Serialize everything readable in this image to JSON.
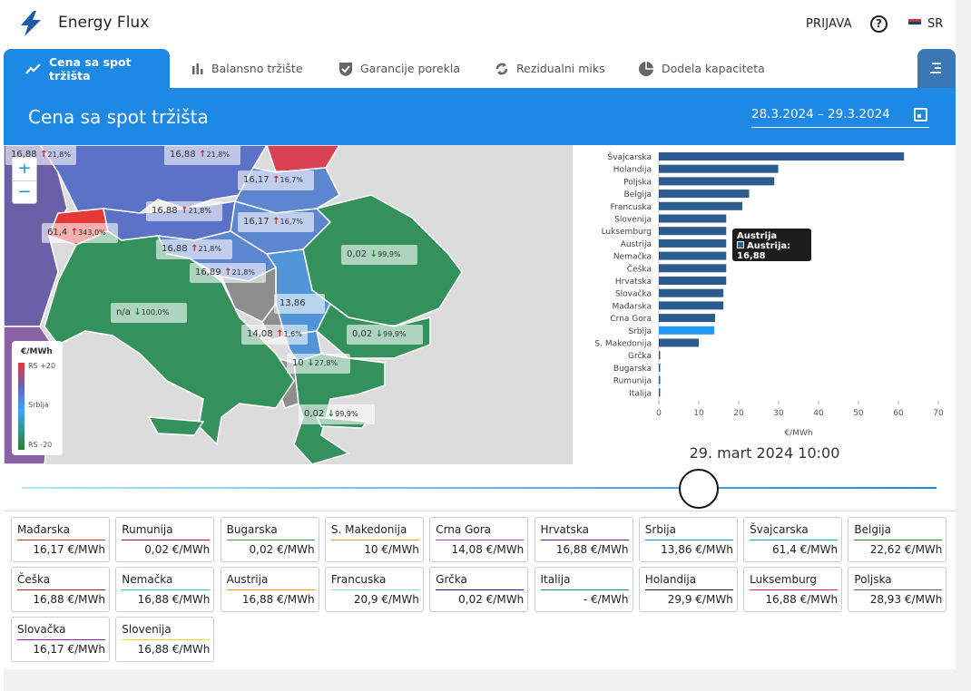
{
  "app": {
    "title": "Energy Flux",
    "login": "PRIJAVA",
    "help": "?",
    "lang": "SR"
  },
  "tabs": [
    {
      "label": "Cena sa spot tržišta",
      "icon": "trend-icon"
    },
    {
      "label": "Balansno tržište",
      "icon": "bar-icon"
    },
    {
      "label": "Garancije porekla",
      "icon": "shield-check-icon"
    },
    {
      "label": "Rezidualni miks",
      "icon": "cycle-icon"
    },
    {
      "label": "Dodela kapaciteta",
      "icon": "pie-icon"
    }
  ],
  "header": {
    "title": "Cena sa spot tržišta",
    "date_range": "28.3.2024 – 29.3.2024"
  },
  "map": {
    "zoom_in": "+",
    "zoom_out": "−",
    "legend_title": "€/MWh",
    "legend_top": "RS +20",
    "legend_mid": "Srbija",
    "legend_bottom": "RS -20",
    "labels": [
      {
        "value": "16,88",
        "dir": "up",
        "pct": "21,8%"
      },
      {
        "value": "16,88",
        "dir": "up",
        "pct": "21,8%"
      },
      {
        "value": "16,17",
        "dir": "up",
        "pct": "16,7%"
      },
      {
        "value": "16,88",
        "dir": "up",
        "pct": "21,8%"
      },
      {
        "value": "16,17",
        "dir": "up",
        "pct": "16,7%"
      },
      {
        "value": "61,4",
        "dir": "up",
        "pct": "343,0%"
      },
      {
        "value": "0,02",
        "dir": "dn",
        "pct": "99,9%"
      },
      {
        "value": "16,88",
        "dir": "up",
        "pct": "21,8%"
      },
      {
        "value": "16,89",
        "dir": "up",
        "pct": "21,8%"
      },
      {
        "value": "n/a",
        "dir": "dn",
        "pct": "100,0%"
      },
      {
        "value": "13,86",
        "dir": "",
        "pct": ""
      },
      {
        "value": "14,08",
        "dir": "up",
        "pct": "1,6%"
      },
      {
        "value": "0,02",
        "dir": "dn",
        "pct": "99,9%"
      },
      {
        "value": "10",
        "dir": "dn",
        "pct": "27,8%"
      },
      {
        "value": "0,02",
        "dir": "dn",
        "pct": "99,9%"
      }
    ]
  },
  "chart_data": {
    "type": "bar",
    "orientation": "horizontal",
    "categories": [
      "Švajcarska",
      "Holandija",
      "Poljska",
      "Belgija",
      "Francuska",
      "Slovenija",
      "Luksemburg",
      "Austrija",
      "Nemačka",
      "Češka",
      "Hrvatska",
      "Slovačka",
      "Mađarska",
      "Crna Gora",
      "Srbija",
      "S. Makedonija",
      "Grčka",
      "Bugarska",
      "Rumunija",
      "Italija"
    ],
    "values": [
      61.4,
      29.9,
      28.93,
      22.62,
      20.9,
      16.88,
      16.88,
      16.88,
      16.88,
      16.88,
      16.88,
      16.17,
      16.17,
      14.08,
      13.86,
      10,
      0.02,
      0.02,
      0.02,
      0
    ],
    "xlim": [
      0,
      70
    ],
    "xticks": [
      0,
      10,
      20,
      30,
      40,
      50,
      60,
      70
    ],
    "xlabel": "€/MWh",
    "bar_color": "#2c5b8f",
    "highlight_color": "#2196f3",
    "highlight": "Srbija"
  },
  "tooltip": {
    "title": "Austrija",
    "text": "Austrija: 16,88"
  },
  "timestamp": "29. mart 2024 10:00",
  "slider": {
    "position": 0.74
  },
  "cards": [
    {
      "name": "Mađarska",
      "value": "16,17 €/MWh",
      "color": "#c0392b"
    },
    {
      "name": "Rumunija",
      "value": "0,02 €/MWh",
      "color": "#ad1457"
    },
    {
      "name": "Bugarska",
      "value": "0,02 €/MWh",
      "color": "#43a047"
    },
    {
      "name": "S. Makedonija",
      "value": "10 €/MWh",
      "color": "#f39c12"
    },
    {
      "name": "Crna Gora",
      "value": "14,08 €/MWh",
      "color": "#8e44ad"
    },
    {
      "name": "Hrvatska",
      "value": "16,88 €/MWh",
      "color": "#6a1b9a"
    },
    {
      "name": "Srbija",
      "value": "13,86 €/MWh",
      "color": "#1e88e5"
    },
    {
      "name": "Švajcarska",
      "value": "61,4 €/MWh",
      "color": "#00acc1"
    },
    {
      "name": "Belgija",
      "value": "22,62 €/MWh",
      "color": "#2e7d32"
    },
    {
      "name": "Češka",
      "value": "16,88 €/MWh",
      "color": "#b71c1c"
    },
    {
      "name": "Nemačka",
      "value": "16,88 €/MWh",
      "color": "#26c6da"
    },
    {
      "name": "Austrija",
      "value": "16,88 €/MWh",
      "color": "#ff9800"
    },
    {
      "name": "Francuska",
      "value": "20,9 €/MWh",
      "color": "#80deea"
    },
    {
      "name": "Grčka",
      "value": "0,02 €/MWh",
      "color": "#1a237e"
    },
    {
      "name": "Italija",
      "value": "- €/MWh",
      "color": "#009688"
    },
    {
      "name": "Holandija",
      "value": "29,9 €/MWh",
      "color": "#212121"
    },
    {
      "name": "Luksemburg",
      "value": "16,88 €/MWh",
      "color": "#e91e63"
    },
    {
      "name": "Poljska",
      "value": "28,93 €/MWh",
      "color": "#795548"
    },
    {
      "name": "Slovačka",
      "value": "16,17 €/MWh",
      "color": "#8e24aa"
    },
    {
      "name": "Slovenija",
      "value": "16,88 €/MWh",
      "color": "#fdd835"
    }
  ]
}
